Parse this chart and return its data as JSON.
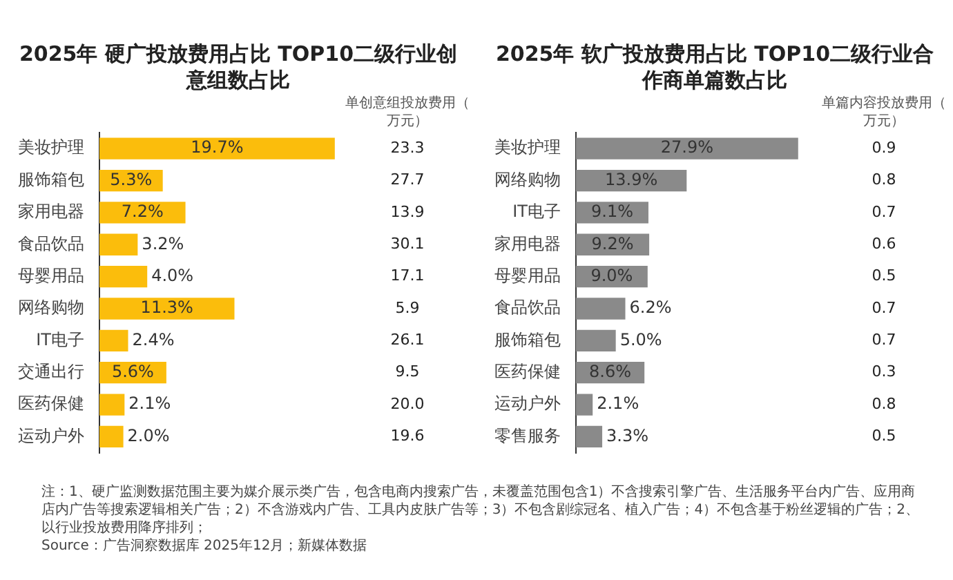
{
  "chart_data": [
    {
      "type": "bar",
      "orientation": "horizontal",
      "title": "2025年 硬广投放费用占比 TOP10二级行业创意组数占比",
      "categories": [
        "美妆护理",
        "服饰箱包",
        "家用电器",
        "食品饮品",
        "母婴用品",
        "网络购物",
        "IT电子",
        "交通出行",
        "医药保健",
        "运动户外"
      ],
      "values": [
        19.7,
        5.3,
        7.2,
        3.2,
        4.0,
        11.3,
        2.4,
        5.6,
        2.1,
        2.0
      ],
      "color": "#fbbd0c",
      "value_labels": [
        "19.7%",
        "5.3%",
        "7.2%",
        "3.2%",
        "4.0%",
        "11.3%",
        "2.4%",
        "5.6%",
        "2.1%",
        "2.0%"
      ],
      "tick_labels": "y",
      "annotations": [
        "单创意组投放费用（万元）",
        "23.3",
        "27.7",
        "13.9",
        "30.1",
        "17.1",
        "5.9",
        "26.1",
        "9.5",
        "20.0",
        "19.6",
        "注：1、硬广监测数据范围主要为媒介展示类广告，包含电商内搜索广告，未覆盖范围包含1）不含搜索引擎广告、生活服务平台内广告、应用商店内广告等搜索逻辑相关广告；2）不含游戏内广告、工具内皮肤广告等；3）不包含剧综冠名、植入广告；4）不包含基于粉丝逻辑的广告；2、以行业投放费用降序排列；",
        "Source：广告洞察数据库 2025年12月；新媒体数据"
      ]
    },
    {
      "type": "bar",
      "orientation": "horizontal",
      "title": "2025年 软广投放费用占比 TOP10二级行业合作商单篇数占比",
      "categories": [
        "美妆护理",
        "网络购物",
        "IT电子",
        "家用电器",
        "母婴用品",
        "食品饮品",
        "服饰箱包",
        "医药保健",
        "运动户外",
        "零售服务"
      ],
      "values": [
        27.9,
        13.9,
        9.1,
        9.2,
        9.0,
        6.2,
        5.0,
        8.6,
        2.1,
        3.3
      ],
      "color": "#8a8a8a",
      "value_labels": [
        "27.9%",
        "13.9%",
        "9.1%",
        "9.2%",
        "9.0%",
        "6.2%",
        "5.0%",
        "8.6%",
        "2.1%",
        "3.3%"
      ],
      "tick_labels": "y",
      "annotations": [
        "单篇内容投放费用（万元）",
        "0.9",
        "0.8",
        "0.7",
        "0.6",
        "0.5",
        "0.7",
        "0.7",
        "0.3",
        "0.8",
        "0.5"
      ]
    }
  ]
}
